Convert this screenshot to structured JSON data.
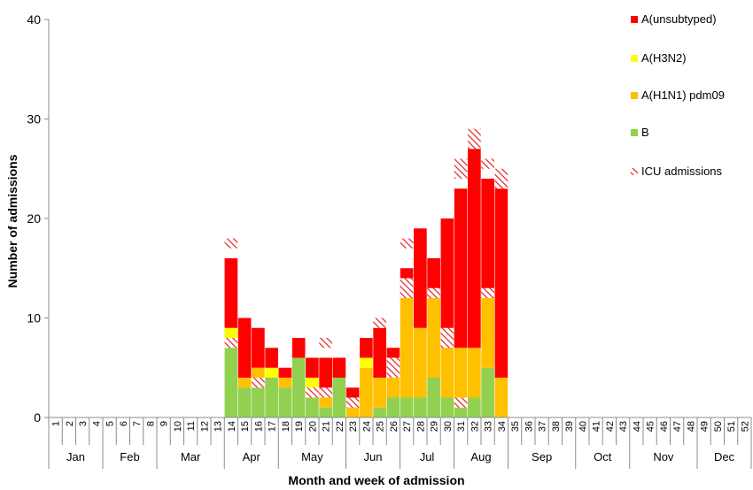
{
  "chart_data": {
    "type": "bar",
    "stacked": true,
    "title": "",
    "xlabel": "Month and week of admission",
    "ylabel": "Number of admissions",
    "ylim": [
      0,
      40
    ],
    "yticks": [
      0,
      10,
      20,
      30,
      40
    ],
    "weeks": [
      "1",
      "2",
      "3",
      "4",
      "5",
      "6",
      "7",
      "8",
      "9",
      "10",
      "11",
      "12",
      "13",
      "14",
      "15",
      "16",
      "17",
      "18",
      "19",
      "20",
      "21",
      "22",
      "23",
      "24",
      "25",
      "26",
      "27",
      "28",
      "29",
      "30",
      "31",
      "32",
      "33",
      "34",
      "35",
      "36",
      "37",
      "38",
      "39",
      "40",
      "41",
      "42",
      "43",
      "44",
      "45",
      "46",
      "47",
      "48",
      "49",
      "50",
      "51",
      "52"
    ],
    "months": [
      {
        "label": "Jan",
        "start": 1,
        "end": 4
      },
      {
        "label": "Feb",
        "start": 5,
        "end": 8
      },
      {
        "label": "Mar",
        "start": 9,
        "end": 13
      },
      {
        "label": "Apr",
        "start": 14,
        "end": 17
      },
      {
        "label": "May",
        "start": 18,
        "end": 22
      },
      {
        "label": "Jun",
        "start": 23,
        "end": 26
      },
      {
        "label": "Jul",
        "start": 27,
        "end": 30
      },
      {
        "label": "Aug",
        "start": 31,
        "end": 34
      },
      {
        "label": "Sep",
        "start": 35,
        "end": 39
      },
      {
        "label": "Oct",
        "start": 40,
        "end": 43
      },
      {
        "label": "Nov",
        "start": 44,
        "end": 48
      },
      {
        "label": "Dec",
        "start": 49,
        "end": 52
      }
    ],
    "legend_position": "right",
    "series": [
      {
        "name": "A(unsubtyped)",
        "color": "#ff0000",
        "values": {
          "14": 7,
          "15": 6,
          "16": 4,
          "17": 2,
          "18": 1,
          "19": 2,
          "20": 2,
          "21": 4,
          "22": 2,
          "23": 2,
          "24": 2,
          "25": 5,
          "26": 3,
          "27": 3,
          "28": 10,
          "29": 4,
          "30": 13,
          "31": 16,
          "32": 20,
          "33": 12,
          "34": 19
        }
      },
      {
        "name": "A(H3N2)",
        "color": "#ffff00",
        "values": {
          "14": 1,
          "17": 1,
          "20": 1,
          "24": 1
        }
      },
      {
        "name": "A(H1N1) pdm09",
        "color": "#ffc000",
        "values": {
          "14": 1,
          "15": 1,
          "16": 2,
          "18": 1,
          "20": 1,
          "21": 1,
          "23": 1,
          "24": 5,
          "25": 3,
          "26": 2,
          "27": 10,
          "28": 7,
          "29": 8,
          "30": 5,
          "31": 6,
          "32": 5,
          "33": 7,
          "34": 4
        }
      },
      {
        "name": "B",
        "color": "#92d050",
        "values": {
          "14": 7,
          "15": 3,
          "16": 3,
          "17": 4,
          "18": 3,
          "19": 6,
          "20": 2,
          "21": 1,
          "22": 4,
          "25": 1,
          "26": 2,
          "27": 2,
          "28": 2,
          "29": 4,
          "30": 2,
          "31": 1,
          "32": 2,
          "33": 5
        }
      },
      {
        "name": "ICU admissions",
        "pattern": "hatched",
        "note_values": "ICU admissions are overlaid as hatched segments within the bars",
        "values": {
          "14": 2,
          "16": 1,
          "20": 1,
          "21": 2,
          "23": 1,
          "25": 1,
          "26": 2,
          "27": 3,
          "29": 1,
          "30": 2,
          "31": 3,
          "32": 2,
          "33": 1,
          "34": 2
        }
      }
    ],
    "icu_segments": [
      {
        "week": 14,
        "segments": [
          [
            7,
            8
          ],
          [
            17,
            18
          ]
        ]
      },
      {
        "week": 16,
        "segments": [
          [
            3,
            4
          ]
        ]
      },
      {
        "week": 20,
        "segments": [
          [
            2,
            3
          ]
        ]
      },
      {
        "week": 21,
        "segments": [
          [
            2,
            3
          ],
          [
            7,
            8
          ]
        ]
      },
      {
        "week": 23,
        "segments": [
          [
            1,
            2
          ]
        ]
      },
      {
        "week": 25,
        "segments": [
          [
            9,
            10
          ]
        ]
      },
      {
        "week": 26,
        "segments": [
          [
            4,
            6
          ]
        ]
      },
      {
        "week": 27,
        "segments": [
          [
            12,
            14
          ],
          [
            17,
            18
          ]
        ]
      },
      {
        "week": 29,
        "segments": [
          [
            12,
            13
          ]
        ]
      },
      {
        "week": 30,
        "segments": [
          [
            7,
            9
          ]
        ]
      },
      {
        "week": 31,
        "segments": [
          [
            1,
            2
          ],
          [
            24,
            26
          ]
        ]
      },
      {
        "week": 32,
        "segments": [
          [
            27,
            29
          ]
        ]
      },
      {
        "week": 33,
        "segments": [
          [
            12,
            13
          ],
          [
            25,
            26
          ]
        ]
      },
      {
        "week": 34,
        "segments": [
          [
            23,
            25
          ]
        ]
      }
    ]
  }
}
